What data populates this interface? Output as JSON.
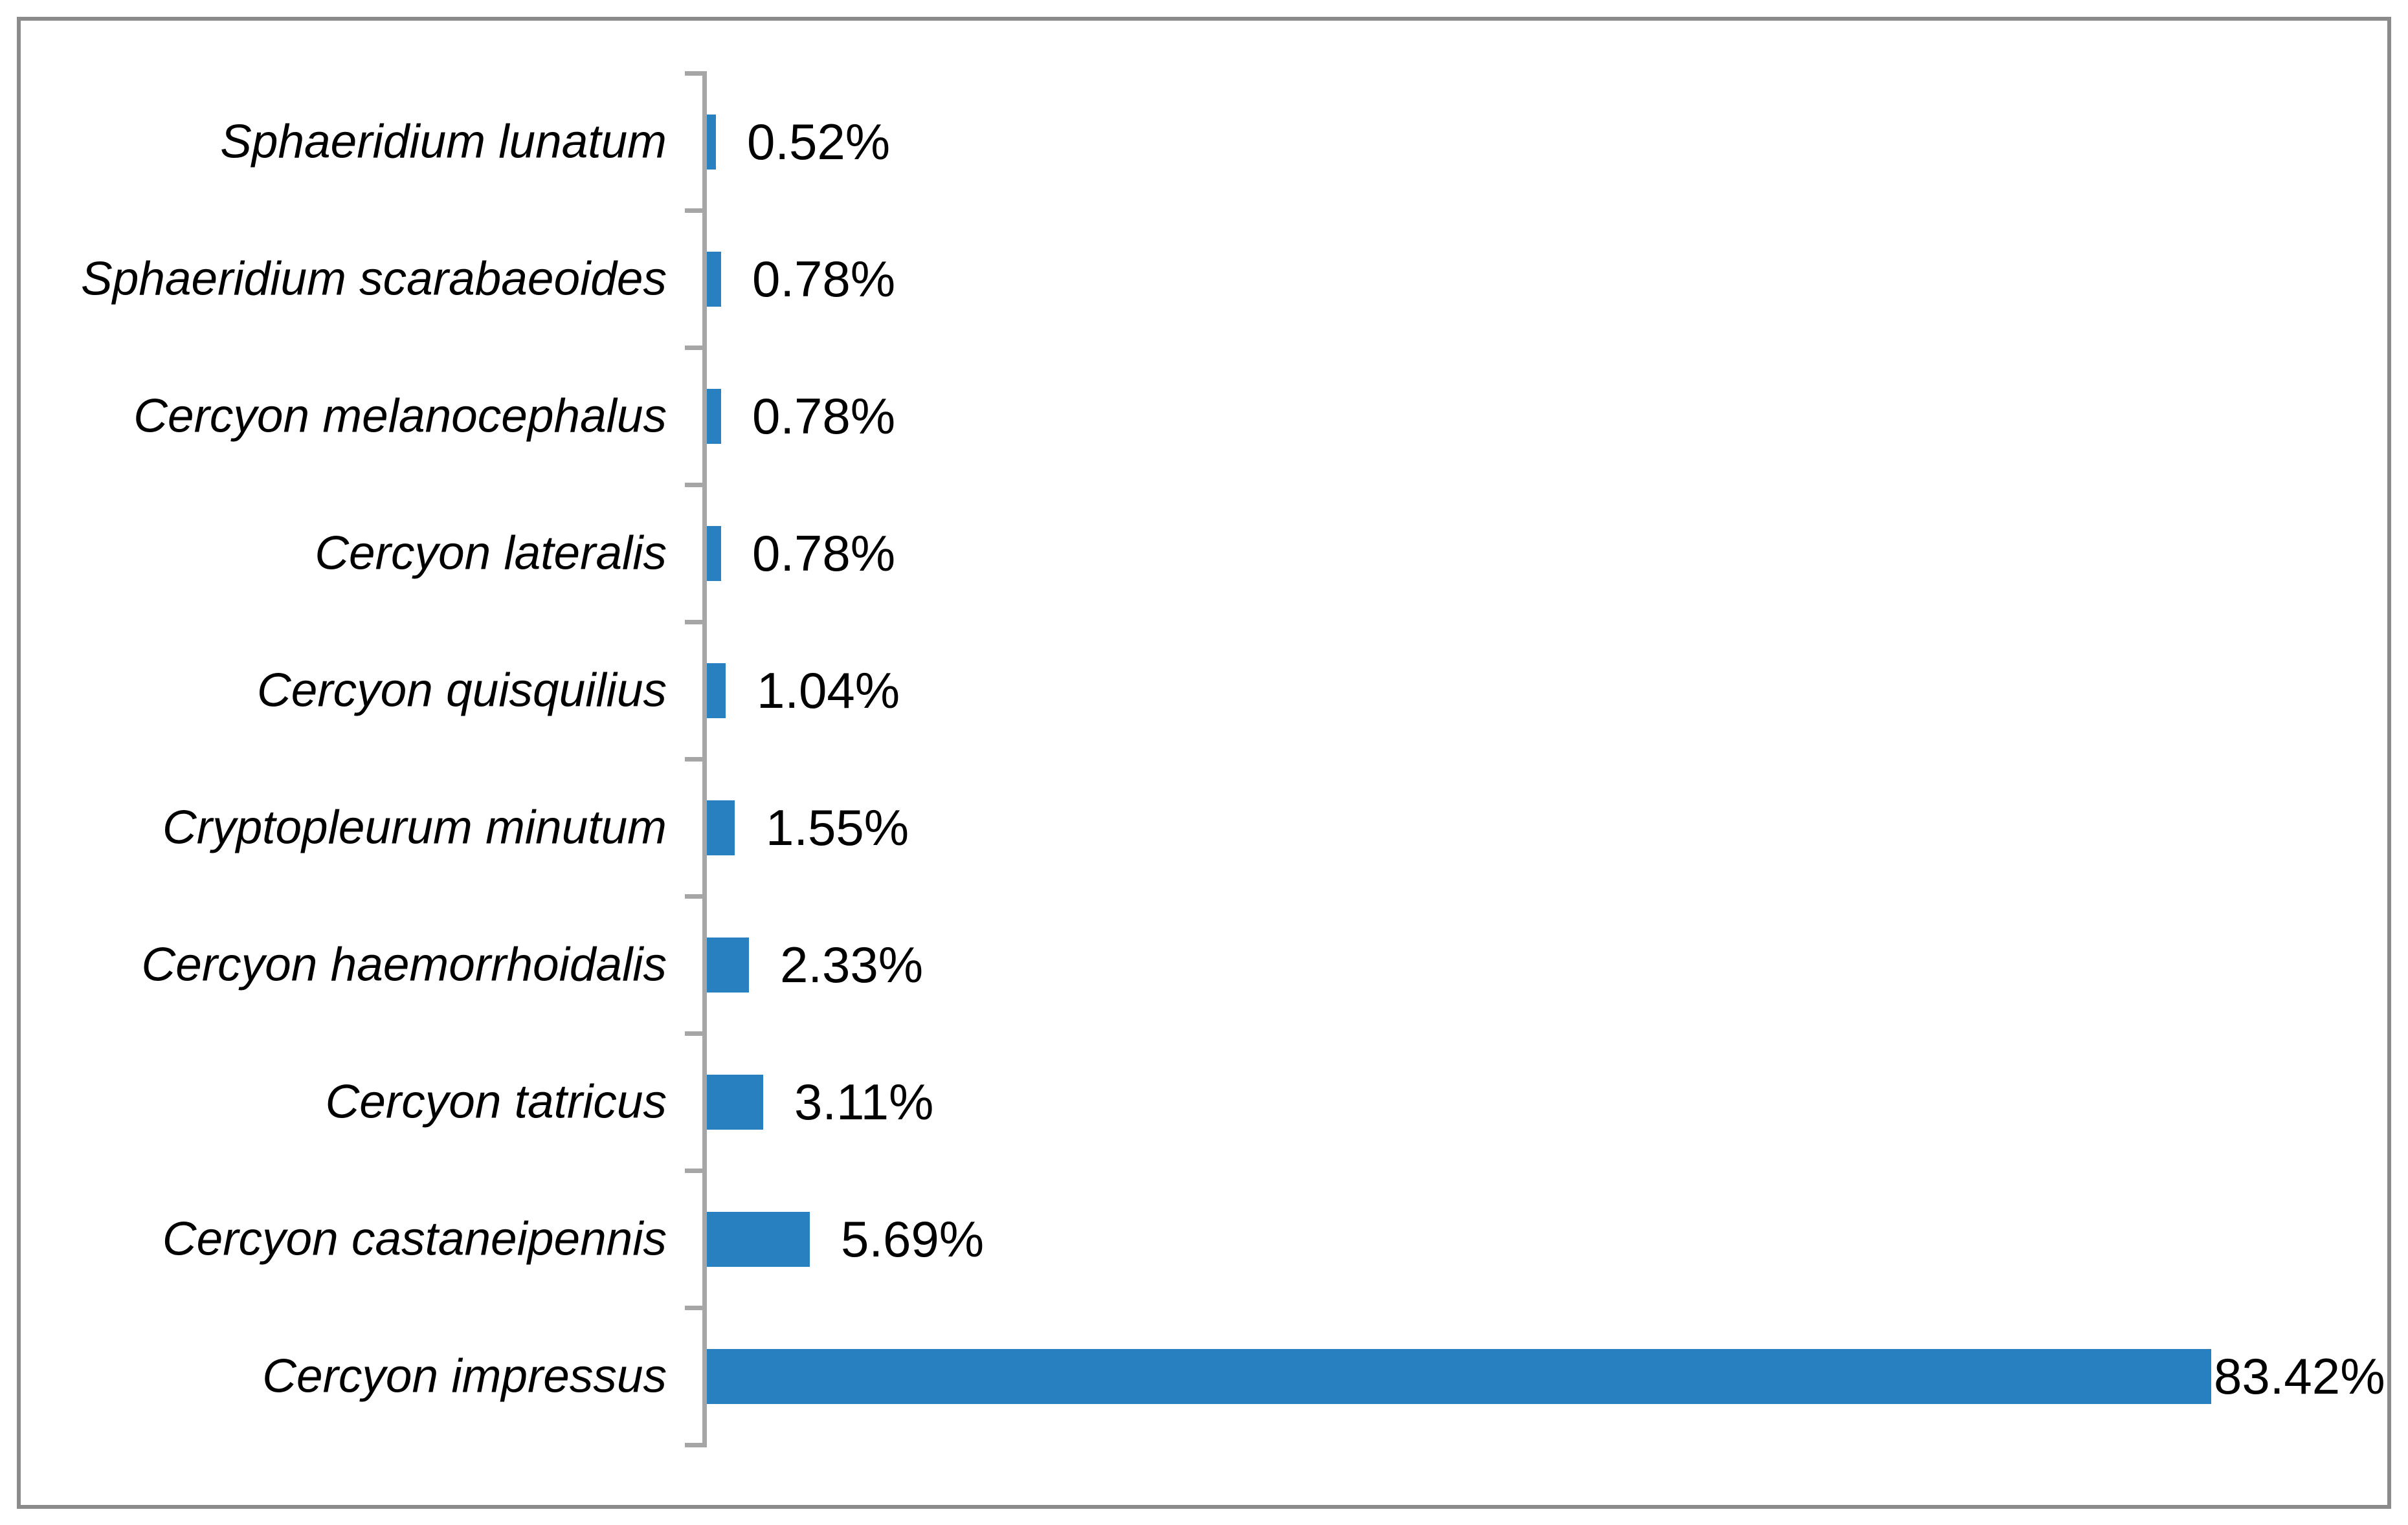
{
  "chart_data": {
    "type": "bar",
    "orientation": "horizontal",
    "title": "",
    "xlabel": "",
    "ylabel": "",
    "xlim": [
      0,
      90
    ],
    "grid": false,
    "legend_position": "none",
    "bar_color": "#2880C0",
    "axis_color": "#A6A6A6",
    "frame_color": "#8B8B8B",
    "text_color": "#000000",
    "categories": [
      "Sphaeridium lunatum",
      "Sphaeridium scarabaeoides",
      "Cercyon melanocephalus",
      "Cercyon lateralis",
      "Cercyon quisquilius",
      "Cryptopleurum minutum",
      "Cercyon haemorrhoidalis",
      "Cercyon tatricus",
      "Cercyon castaneipennis",
      "Cercyon impressus"
    ],
    "values": [
      0.52,
      0.78,
      0.78,
      0.78,
      1.04,
      1.55,
      2.33,
      3.11,
      5.69,
      83.42
    ],
    "value_labels": [
      "0.52%",
      "0.78%",
      "0.78%",
      "0.78%",
      "1.04%",
      "1.55%",
      "2.33%",
      "3.11%",
      "5.69%",
      "83.42%"
    ]
  }
}
